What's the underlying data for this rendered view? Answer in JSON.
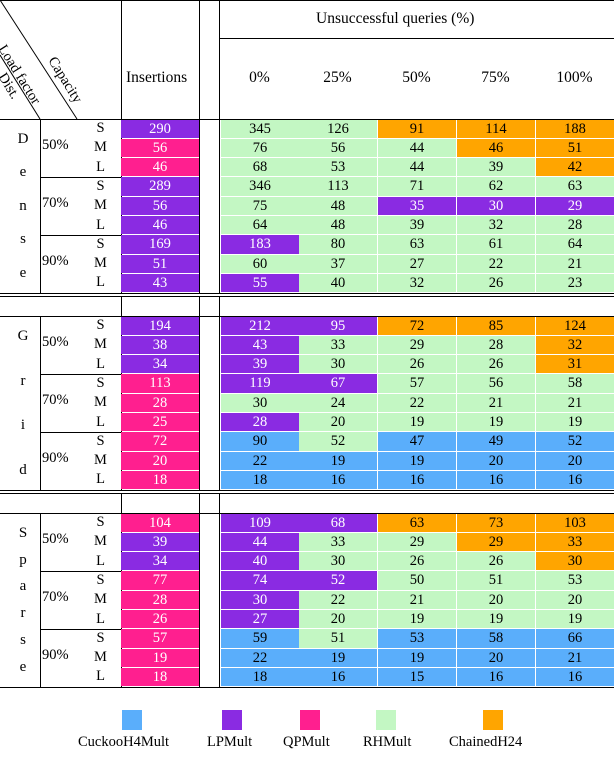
{
  "header": {
    "load_factor": "Load factor",
    "capacity": "Capacity",
    "dist": "Dist.",
    "insertions": "Insertions",
    "unsuccessful": "Unsuccessful queries (%)",
    "query_cols": [
      "0%",
      "25%",
      "50%",
      "75%",
      "100%"
    ]
  },
  "colors": {
    "CuckooH4Mult": "#5aaefb",
    "LPMult": "#8a2be2",
    "QPMult": "#ff1f8f",
    "RHMult": "#c3f7c3",
    "ChainedH24": "#ffa500"
  },
  "sections": [
    {
      "name": "Dense",
      "groups": [
        {
          "lf": "50%",
          "rows": [
            {
              "cap": "S",
              "ins": {
                "v": "290",
                "c": "lp"
              },
              "q": [
                [
                  "345",
                  "rh"
                ],
                [
                  "126",
                  "rh"
                ],
                [
                  "91",
                  "ch"
                ],
                [
                  "114",
                  "ch"
                ],
                [
                  "188",
                  "ch"
                ]
              ]
            },
            {
              "cap": "M",
              "ins": {
                "v": "56",
                "c": "qp"
              },
              "q": [
                [
                  "76",
                  "rh"
                ],
                [
                  "56",
                  "rh"
                ],
                [
                  "44",
                  "rh"
                ],
                [
                  "46",
                  "ch"
                ],
                [
                  "51",
                  "ch"
                ]
              ]
            },
            {
              "cap": "L",
              "ins": {
                "v": "46",
                "c": "qp"
              },
              "q": [
                [
                  "68",
                  "rh"
                ],
                [
                  "53",
                  "rh"
                ],
                [
                  "44",
                  "rh"
                ],
                [
                  "39",
                  "rh"
                ],
                [
                  "42",
                  "ch"
                ]
              ]
            }
          ]
        },
        {
          "lf": "70%",
          "rows": [
            {
              "cap": "S",
              "ins": {
                "v": "289",
                "c": "lp"
              },
              "q": [
                [
                  "346",
                  "rh"
                ],
                [
                  "113",
                  "rh"
                ],
                [
                  "71",
                  "rh"
                ],
                [
                  "62",
                  "rh"
                ],
                [
                  "63",
                  "rh"
                ]
              ]
            },
            {
              "cap": "M",
              "ins": {
                "v": "56",
                "c": "lp"
              },
              "q": [
                [
                  "75",
                  "rh"
                ],
                [
                  "48",
                  "rh"
                ],
                [
                  "35",
                  "lp"
                ],
                [
                  "30",
                  "lp"
                ],
                [
                  "29",
                  "lp"
                ]
              ]
            },
            {
              "cap": "L",
              "ins": {
                "v": "46",
                "c": "lp"
              },
              "q": [
                [
                  "64",
                  "rh"
                ],
                [
                  "48",
                  "rh"
                ],
                [
                  "39",
                  "rh"
                ],
                [
                  "32",
                  "rh"
                ],
                [
                  "28",
                  "rh"
                ]
              ]
            }
          ]
        },
        {
          "lf": "90%",
          "rows": [
            {
              "cap": "S",
              "ins": {
                "v": "169",
                "c": "lp"
              },
              "q": [
                [
                  "183",
                  "lp"
                ],
                [
                  "80",
                  "rh"
                ],
                [
                  "63",
                  "rh"
                ],
                [
                  "61",
                  "rh"
                ],
                [
                  "64",
                  "rh"
                ]
              ]
            },
            {
              "cap": "M",
              "ins": {
                "v": "51",
                "c": "lp"
              },
              "q": [
                [
                  "60",
                  "rh"
                ],
                [
                  "37",
                  "rh"
                ],
                [
                  "27",
                  "rh"
                ],
                [
                  "22",
                  "rh"
                ],
                [
                  "21",
                  "rh"
                ]
              ]
            },
            {
              "cap": "L",
              "ins": {
                "v": "43",
                "c": "lp"
              },
              "q": [
                [
                  "55",
                  "lp"
                ],
                [
                  "40",
                  "rh"
                ],
                [
                  "32",
                  "rh"
                ],
                [
                  "26",
                  "rh"
                ],
                [
                  "23",
                  "rh"
                ]
              ]
            }
          ]
        }
      ]
    },
    {
      "name": "Grid",
      "groups": [
        {
          "lf": "50%",
          "rows": [
            {
              "cap": "S",
              "ins": {
                "v": "194",
                "c": "lp"
              },
              "q": [
                [
                  "212",
                  "lp"
                ],
                [
                  "95",
                  "lp"
                ],
                [
                  "72",
                  "ch"
                ],
                [
                  "85",
                  "ch"
                ],
                [
                  "124",
                  "ch"
                ]
              ]
            },
            {
              "cap": "M",
              "ins": {
                "v": "38",
                "c": "lp"
              },
              "q": [
                [
                  "43",
                  "lp"
                ],
                [
                  "33",
                  "rh"
                ],
                [
                  "29",
                  "rh"
                ],
                [
                  "28",
                  "rh"
                ],
                [
                  "32",
                  "ch"
                ]
              ]
            },
            {
              "cap": "L",
              "ins": {
                "v": "34",
                "c": "lp"
              },
              "q": [
                [
                  "39",
                  "lp"
                ],
                [
                  "30",
                  "rh"
                ],
                [
                  "26",
                  "rh"
                ],
                [
                  "26",
                  "rh"
                ],
                [
                  "31",
                  "ch"
                ]
              ]
            }
          ]
        },
        {
          "lf": "70%",
          "rows": [
            {
              "cap": "S",
              "ins": {
                "v": "113",
                "c": "qp"
              },
              "q": [
                [
                  "119",
                  "lp"
                ],
                [
                  "67",
                  "lp"
                ],
                [
                  "57",
                  "rh"
                ],
                [
                  "56",
                  "rh"
                ],
                [
                  "58",
                  "rh"
                ]
              ]
            },
            {
              "cap": "M",
              "ins": {
                "v": "28",
                "c": "qp"
              },
              "q": [
                [
                  "30",
                  "rh"
                ],
                [
                  "24",
                  "rh"
                ],
                [
                  "22",
                  "rh"
                ],
                [
                  "21",
                  "rh"
                ],
                [
                  "21",
                  "rh"
                ]
              ]
            },
            {
              "cap": "L",
              "ins": {
                "v": "25",
                "c": "qp"
              },
              "q": [
                [
                  "28",
                  "lp"
                ],
                [
                  "20",
                  "rh"
                ],
                [
                  "19",
                  "rh"
                ],
                [
                  "19",
                  "rh"
                ],
                [
                  "19",
                  "rh"
                ]
              ]
            }
          ]
        },
        {
          "lf": "90%",
          "rows": [
            {
              "cap": "S",
              "ins": {
                "v": "72",
                "c": "qp"
              },
              "q": [
                [
                  "90",
                  "cuckoo"
                ],
                [
                  "52",
                  "rh"
                ],
                [
                  "47",
                  "cuckoo"
                ],
                [
                  "49",
                  "cuckoo"
                ],
                [
                  "52",
                  "cuckoo"
                ]
              ]
            },
            {
              "cap": "M",
              "ins": {
                "v": "20",
                "c": "qp"
              },
              "q": [
                [
                  "22",
                  "cuckoo"
                ],
                [
                  "19",
                  "cuckoo"
                ],
                [
                  "19",
                  "cuckoo"
                ],
                [
                  "20",
                  "cuckoo"
                ],
                [
                  "20",
                  "cuckoo"
                ]
              ]
            },
            {
              "cap": "L",
              "ins": {
                "v": "18",
                "c": "qp"
              },
              "q": [
                [
                  "18",
                  "cuckoo"
                ],
                [
                  "16",
                  "cuckoo"
                ],
                [
                  "16",
                  "cuckoo"
                ],
                [
                  "16",
                  "cuckoo"
                ],
                [
                  "16",
                  "cuckoo"
                ]
              ]
            }
          ]
        }
      ]
    },
    {
      "name": "Sparse",
      "groups": [
        {
          "lf": "50%",
          "rows": [
            {
              "cap": "S",
              "ins": {
                "v": "104",
                "c": "qp"
              },
              "q": [
                [
                  "109",
                  "lp"
                ],
                [
                  "68",
                  "lp"
                ],
                [
                  "63",
                  "ch"
                ],
                [
                  "73",
                  "ch"
                ],
                [
                  "103",
                  "ch"
                ]
              ]
            },
            {
              "cap": "M",
              "ins": {
                "v": "39",
                "c": "lp"
              },
              "q": [
                [
                  "44",
                  "lp"
                ],
                [
                  "33",
                  "rh"
                ],
                [
                  "29",
                  "rh"
                ],
                [
                  "29",
                  "ch"
                ],
                [
                  "33",
                  "ch"
                ]
              ]
            },
            {
              "cap": "L",
              "ins": {
                "v": "34",
                "c": "lp"
              },
              "q": [
                [
                  "40",
                  "lp"
                ],
                [
                  "30",
                  "rh"
                ],
                [
                  "26",
                  "rh"
                ],
                [
                  "26",
                  "rh"
                ],
                [
                  "30",
                  "ch"
                ]
              ]
            }
          ]
        },
        {
          "lf": "70%",
          "rows": [
            {
              "cap": "S",
              "ins": {
                "v": "77",
                "c": "qp"
              },
              "q": [
                [
                  "74",
                  "lp"
                ],
                [
                  "52",
                  "lp"
                ],
                [
                  "50",
                  "rh"
                ],
                [
                  "51",
                  "rh"
                ],
                [
                  "53",
                  "rh"
                ]
              ]
            },
            {
              "cap": "M",
              "ins": {
                "v": "28",
                "c": "qp"
              },
              "q": [
                [
                  "30",
                  "lp"
                ],
                [
                  "22",
                  "rh"
                ],
                [
                  "21",
                  "rh"
                ],
                [
                  "20",
                  "rh"
                ],
                [
                  "20",
                  "rh"
                ]
              ]
            },
            {
              "cap": "L",
              "ins": {
                "v": "26",
                "c": "qp"
              },
              "q": [
                [
                  "27",
                  "lp"
                ],
                [
                  "20",
                  "rh"
                ],
                [
                  "19",
                  "rh"
                ],
                [
                  "19",
                  "rh"
                ],
                [
                  "19",
                  "rh"
                ]
              ]
            }
          ]
        },
        {
          "lf": "90%",
          "rows": [
            {
              "cap": "S",
              "ins": {
                "v": "57",
                "c": "qp"
              },
              "q": [
                [
                  "59",
                  "cuckoo"
                ],
                [
                  "51",
                  "rh"
                ],
                [
                  "53",
                  "cuckoo"
                ],
                [
                  "58",
                  "cuckoo"
                ],
                [
                  "66",
                  "cuckoo"
                ]
              ]
            },
            {
              "cap": "M",
              "ins": {
                "v": "19",
                "c": "qp"
              },
              "q": [
                [
                  "22",
                  "cuckoo"
                ],
                [
                  "19",
                  "cuckoo"
                ],
                [
                  "19",
                  "cuckoo"
                ],
                [
                  "20",
                  "cuckoo"
                ],
                [
                  "21",
                  "cuckoo"
                ]
              ]
            },
            {
              "cap": "L",
              "ins": {
                "v": "18",
                "c": "qp"
              },
              "q": [
                [
                  "18",
                  "cuckoo"
                ],
                [
                  "16",
                  "cuckoo"
                ],
                [
                  "15",
                  "cuckoo"
                ],
                [
                  "16",
                  "cuckoo"
                ],
                [
                  "16",
                  "cuckoo"
                ]
              ]
            }
          ]
        }
      ]
    }
  ],
  "legend": [
    {
      "label": "CuckooH4Mult",
      "c": "cuckoo"
    },
    {
      "label": "LPMult",
      "c": "lp"
    },
    {
      "label": "QPMult",
      "c": "qp"
    },
    {
      "label": "RHMult",
      "c": "rh"
    },
    {
      "label": "ChainedH24",
      "c": "ch"
    }
  ]
}
